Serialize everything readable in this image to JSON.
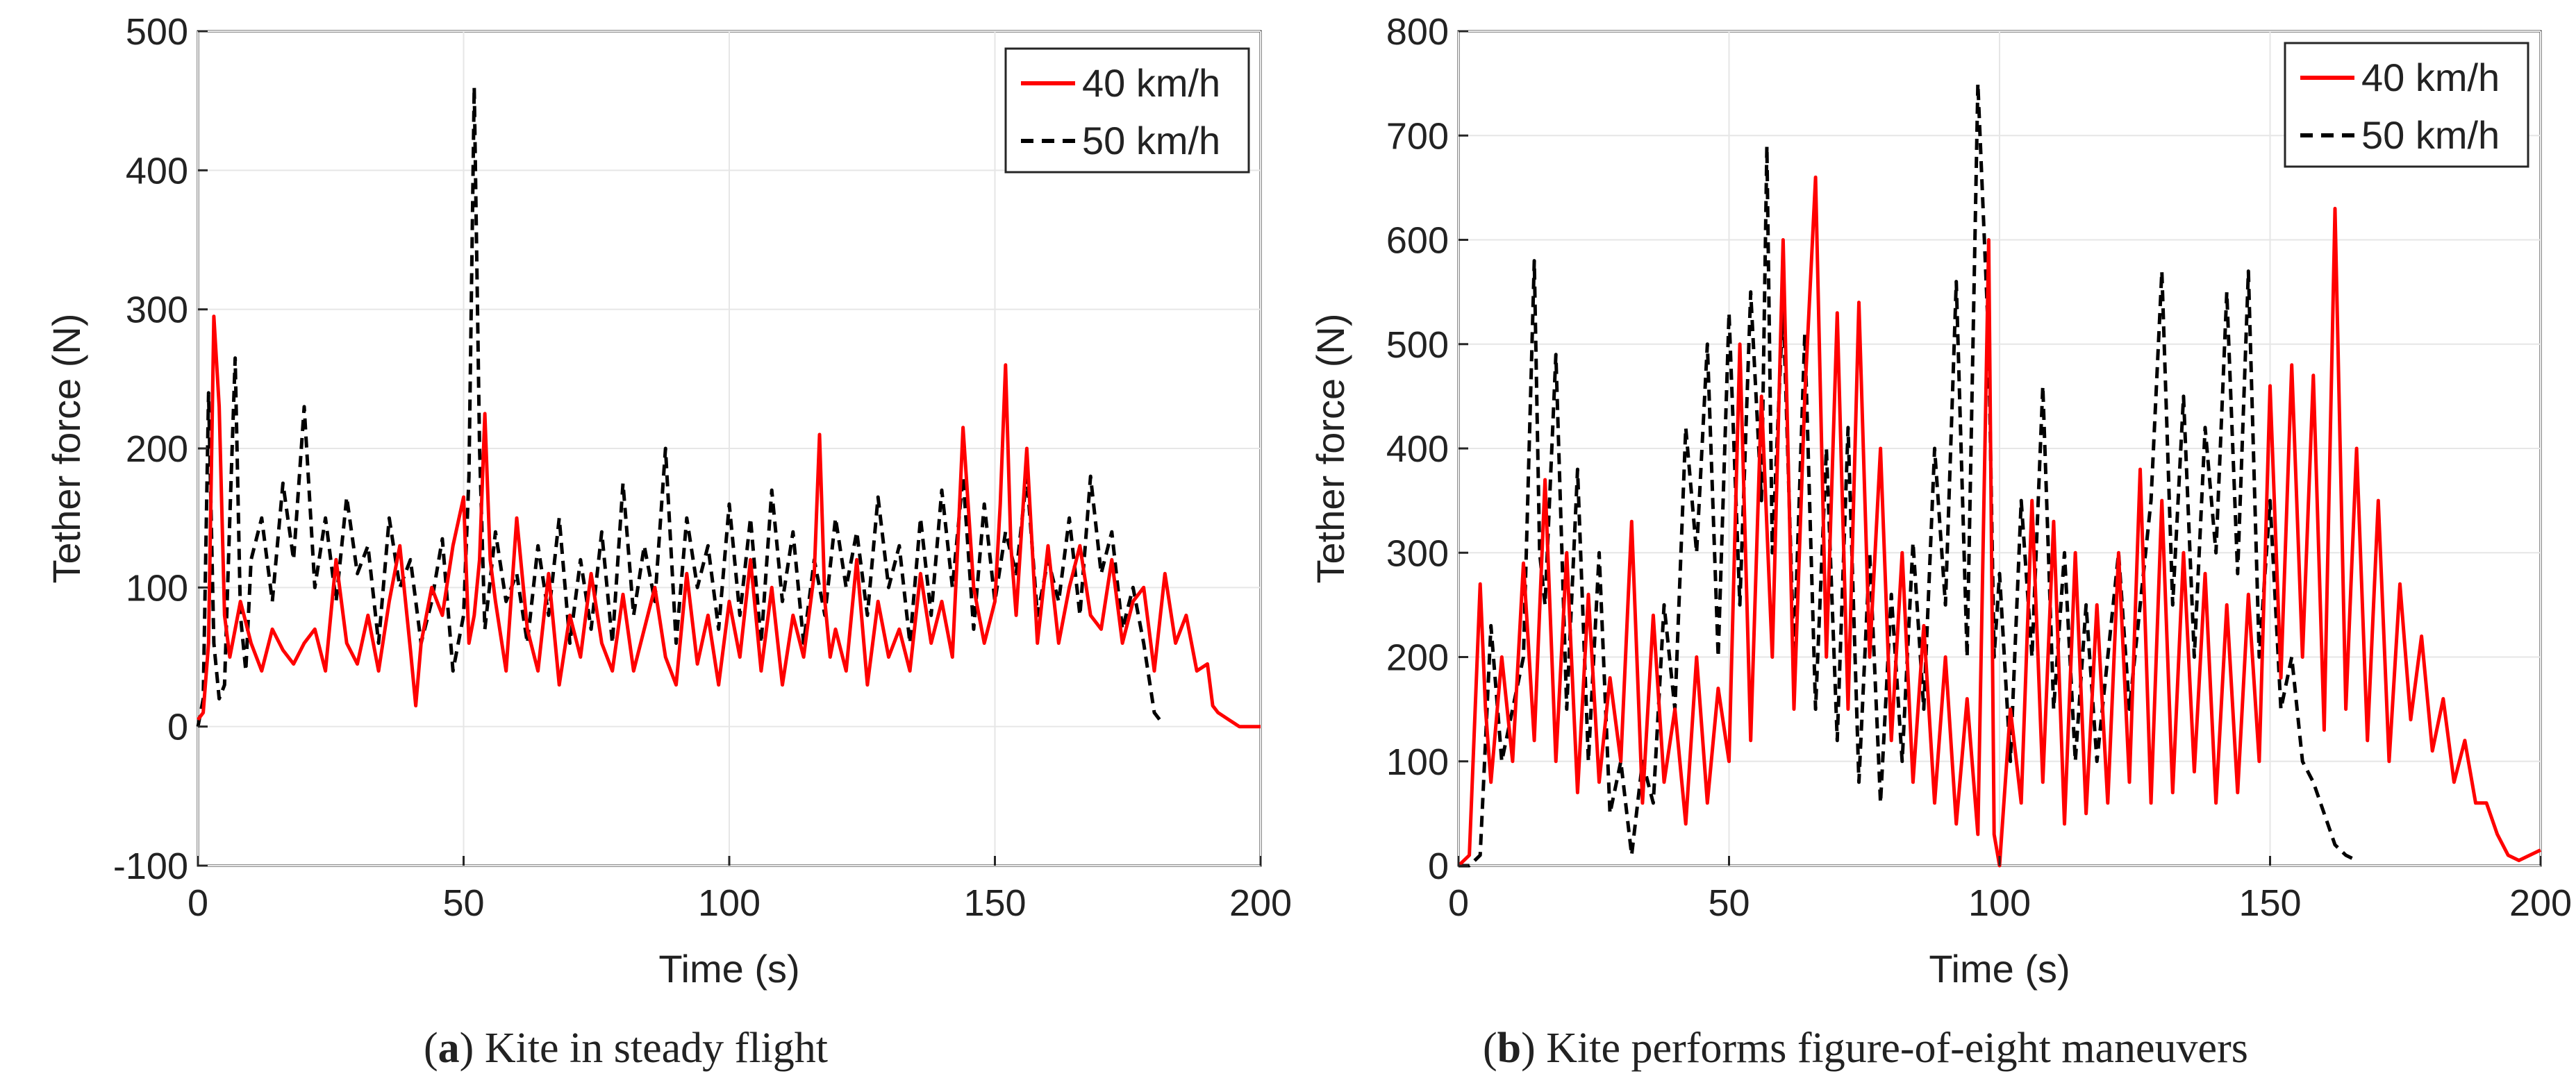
{
  "chart_data": [
    {
      "type": "line",
      "id": "a",
      "caption_letter": "a",
      "caption_text": "Kite in steady flight",
      "xlabel": "Time (s)",
      "ylabel": "Tether force (N)",
      "xlim": [
        0,
        200
      ],
      "ylim": [
        -100,
        500
      ],
      "xticks": [
        0,
        50,
        100,
        150,
        200
      ],
      "yticks": [
        -100,
        0,
        100,
        200,
        300,
        400,
        500
      ],
      "grid": true,
      "legend_position": "top-right",
      "series": [
        {
          "name": "40 km/h",
          "color": "#ff0000",
          "dash": "solid",
          "x": [
            0,
            1,
            2,
            3,
            4,
            5,
            6,
            7,
            8,
            10,
            12,
            14,
            16,
            18,
            20,
            22,
            24,
            26,
            28,
            30,
            32,
            34,
            36,
            38,
            40,
            41,
            42,
            44,
            46,
            48,
            50,
            51,
            52,
            53,
            54,
            55,
            56,
            58,
            60,
            62,
            64,
            66,
            68,
            70,
            72,
            74,
            76,
            78,
            80,
            82,
            84,
            86,
            88,
            90,
            92,
            94,
            96,
            98,
            100,
            102,
            104,
            106,
            108,
            110,
            112,
            114,
            116,
            117,
            118,
            119,
            120,
            122,
            124,
            126,
            128,
            130,
            132,
            134,
            136,
            138,
            140,
            142,
            143,
            144,
            146,
            148,
            150,
            151,
            152,
            153,
            154,
            156,
            158,
            160,
            162,
            164,
            166,
            168,
            170,
            172,
            174,
            176,
            178,
            180,
            182,
            184,
            186,
            188,
            190,
            191,
            192,
            194,
            196,
            198,
            200
          ],
          "y": [
            5,
            10,
            60,
            295,
            230,
            80,
            50,
            70,
            90,
            60,
            40,
            70,
            55,
            45,
            60,
            70,
            40,
            120,
            60,
            45,
            80,
            40,
            90,
            130,
            55,
            15,
            60,
            100,
            80,
            130,
            165,
            60,
            80,
            120,
            225,
            120,
            90,
            40,
            150,
            70,
            40,
            110,
            30,
            80,
            50,
            110,
            60,
            40,
            95,
            40,
            70,
            100,
            50,
            30,
            110,
            45,
            80,
            30,
            90,
            50,
            120,
            40,
            100,
            30,
            80,
            50,
            110,
            210,
            90,
            50,
            70,
            40,
            120,
            30,
            90,
            50,
            70,
            40,
            110,
            60,
            90,
            50,
            130,
            215,
            100,
            60,
            90,
            160,
            260,
            130,
            80,
            200,
            60,
            130,
            60,
            100,
            130,
            80,
            70,
            120,
            60,
            90,
            100,
            40,
            110,
            60,
            80,
            40,
            45,
            15,
            10,
            5,
            0,
            0,
            0
          ]
        },
        {
          "name": "50 km/h",
          "color": "#000000",
          "dash": "dashed",
          "x": [
            0,
            1,
            2,
            3,
            4,
            5,
            6,
            7,
            8,
            9,
            10,
            12,
            14,
            16,
            18,
            20,
            22,
            24,
            26,
            28,
            30,
            32,
            34,
            36,
            38,
            40,
            42,
            44,
            46,
            48,
            50,
            51,
            52,
            53,
            54,
            56,
            58,
            60,
            62,
            64,
            66,
            68,
            70,
            72,
            74,
            76,
            78,
            80,
            82,
            84,
            86,
            88,
            90,
            92,
            94,
            96,
            98,
            100,
            102,
            104,
            106,
            108,
            110,
            112,
            114,
            116,
            118,
            120,
            122,
            124,
            126,
            128,
            130,
            132,
            134,
            136,
            138,
            140,
            142,
            144,
            146,
            148,
            150,
            152,
            154,
            156,
            158,
            160,
            162,
            164,
            166,
            168,
            170,
            172,
            174,
            176,
            178,
            180,
            181
          ],
          "y": [
            0,
            20,
            240,
            60,
            20,
            30,
            150,
            265,
            80,
            40,
            120,
            150,
            90,
            175,
            120,
            230,
            100,
            150,
            90,
            165,
            110,
            130,
            60,
            150,
            100,
            120,
            60,
            90,
            135,
            40,
            80,
            180,
            460,
            200,
            70,
            140,
            90,
            110,
            60,
            130,
            80,
            150,
            60,
            120,
            70,
            140,
            60,
            175,
            80,
            130,
            90,
            200,
            60,
            150,
            100,
            130,
            70,
            160,
            80,
            150,
            60,
            170,
            90,
            140,
            60,
            120,
            80,
            150,
            100,
            140,
            80,
            165,
            100,
            130,
            60,
            150,
            80,
            170,
            100,
            180,
            70,
            160,
            90,
            140,
            110,
            180,
            80,
            120,
            90,
            150,
            80,
            180,
            110,
            140,
            70,
            100,
            60,
            10,
            5
          ]
        }
      ]
    },
    {
      "type": "line",
      "id": "b",
      "caption_letter": "b",
      "caption_text": "Kite performs figure-of-eight maneuvers",
      "xlabel": "Time (s)",
      "ylabel": "Tether force (N)",
      "xlim": [
        0,
        200
      ],
      "ylim": [
        0,
        800
      ],
      "xticks": [
        0,
        50,
        100,
        150,
        200
      ],
      "yticks": [
        0,
        100,
        200,
        300,
        400,
        500,
        600,
        700,
        800
      ],
      "grid": true,
      "legend_position": "top-right",
      "series": [
        {
          "name": "40 km/h",
          "color": "#ff0000",
          "dash": "solid",
          "x": [
            0,
            2,
            4,
            5,
            6,
            8,
            10,
            12,
            14,
            16,
            18,
            20,
            22,
            24,
            26,
            28,
            30,
            32,
            34,
            36,
            38,
            40,
            42,
            44,
            46,
            48,
            50,
            52,
            54,
            56,
            58,
            60,
            62,
            64,
            66,
            68,
            70,
            72,
            74,
            76,
            78,
            80,
            82,
            84,
            86,
            88,
            90,
            92,
            94,
            96,
            98,
            99,
            100,
            102,
            104,
            106,
            108,
            110,
            112,
            114,
            116,
            118,
            120,
            122,
            124,
            126,
            128,
            130,
            132,
            134,
            136,
            138,
            140,
            142,
            144,
            146,
            148,
            150,
            152,
            154,
            156,
            158,
            160,
            162,
            164,
            166,
            168,
            170,
            172,
            174,
            176,
            178,
            180,
            182,
            184,
            186,
            188,
            190,
            192,
            194,
            196,
            198,
            200
          ],
          "y": [
            0,
            10,
            270,
            150,
            80,
            200,
            100,
            290,
            120,
            370,
            100,
            300,
            70,
            260,
            80,
            180,
            100,
            330,
            60,
            240,
            80,
            150,
            40,
            200,
            60,
            170,
            100,
            500,
            120,
            450,
            200,
            600,
            150,
            450,
            660,
            200,
            530,
            150,
            540,
            200,
            400,
            120,
            300,
            80,
            230,
            60,
            200,
            40,
            160,
            30,
            600,
            30,
            0,
            150,
            60,
            350,
            80,
            330,
            40,
            300,
            50,
            250,
            60,
            300,
            80,
            380,
            60,
            350,
            70,
            300,
            90,
            280,
            60,
            250,
            70,
            260,
            100,
            460,
            180,
            480,
            200,
            470,
            130,
            630,
            150,
            400,
            120,
            350,
            100,
            270,
            140,
            220,
            110,
            160,
            80,
            120,
            60,
            60,
            30,
            10,
            5,
            10,
            15
          ]
        },
        {
          "name": "50 km/h",
          "color": "#000000",
          "dash": "dashed",
          "x": [
            0,
            2,
            4,
            6,
            8,
            10,
            12,
            14,
            15,
            16,
            18,
            20,
            22,
            24,
            26,
            28,
            30,
            32,
            34,
            36,
            38,
            40,
            42,
            44,
            46,
            48,
            50,
            52,
            54,
            56,
            57,
            58,
            60,
            62,
            64,
            66,
            68,
            70,
            72,
            74,
            76,
            78,
            80,
            82,
            84,
            86,
            88,
            90,
            92,
            94,
            96,
            98,
            99,
            100,
            102,
            104,
            106,
            108,
            110,
            112,
            114,
            116,
            118,
            120,
            122,
            124,
            126,
            128,
            130,
            132,
            134,
            136,
            138,
            140,
            142,
            144,
            146,
            148,
            150,
            152,
            154,
            156,
            158,
            160,
            162,
            164,
            166
          ],
          "y": [
            0,
            0,
            10,
            230,
            100,
            150,
            200,
            580,
            300,
            250,
            490,
            150,
            380,
            100,
            300,
            50,
            100,
            10,
            100,
            60,
            250,
            150,
            420,
            300,
            500,
            200,
            530,
            250,
            550,
            350,
            690,
            300,
            540,
            200,
            510,
            150,
            400,
            120,
            420,
            80,
            300,
            60,
            260,
            100,
            310,
            150,
            400,
            250,
            560,
            200,
            750,
            500,
            200,
            280,
            100,
            350,
            200,
            460,
            150,
            300,
            100,
            250,
            100,
            200,
            300,
            150,
            250,
            350,
            570,
            250,
            450,
            200,
            420,
            300,
            550,
            280,
            570,
            200,
            350,
            150,
            200,
            100,
            80,
            50,
            20,
            10,
            5
          ]
        }
      ]
    }
  ]
}
